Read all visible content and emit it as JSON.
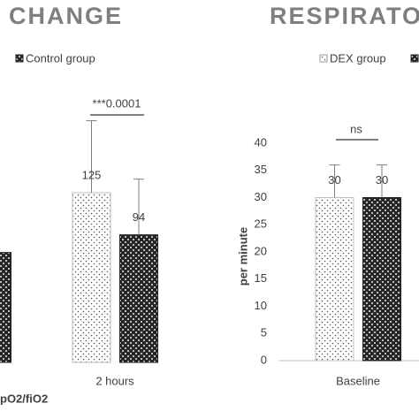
{
  "chart_data": [
    {
      "type": "bar",
      "title": "CHANGE",
      "x_label": "pO2/fiO2",
      "annotation": "***0.0001",
      "categories": [
        null,
        "2 hours"
      ],
      "ylim": [
        0,
        250
      ],
      "series": [
        {
          "color": "#d9d9d9",
          "values": [
            null,
            125
          ],
          "errors": [
            null,
            53
          ]
        },
        {
          "name": "Control group",
          "color": "#262626",
          "values": [
            81,
            94
          ],
          "errors": [
            null,
            41
          ]
        }
      ]
    },
    {
      "type": "bar",
      "title": "RESPIRATO",
      "y_label": "per minute",
      "annotation": "ns",
      "categories": [
        "Baseline"
      ],
      "ylim": [
        0,
        40
      ],
      "yticks": [
        0,
        5,
        10,
        15,
        20,
        25,
        30,
        35,
        40
      ],
      "series": [
        {
          "name": "DEX group",
          "color": "#d9d9d9",
          "values": [
            30
          ],
          "errors": [
            6
          ]
        },
        {
          "color": "#262626",
          "values": [
            30
          ],
          "errors": [
            6
          ]
        }
      ]
    }
  ]
}
